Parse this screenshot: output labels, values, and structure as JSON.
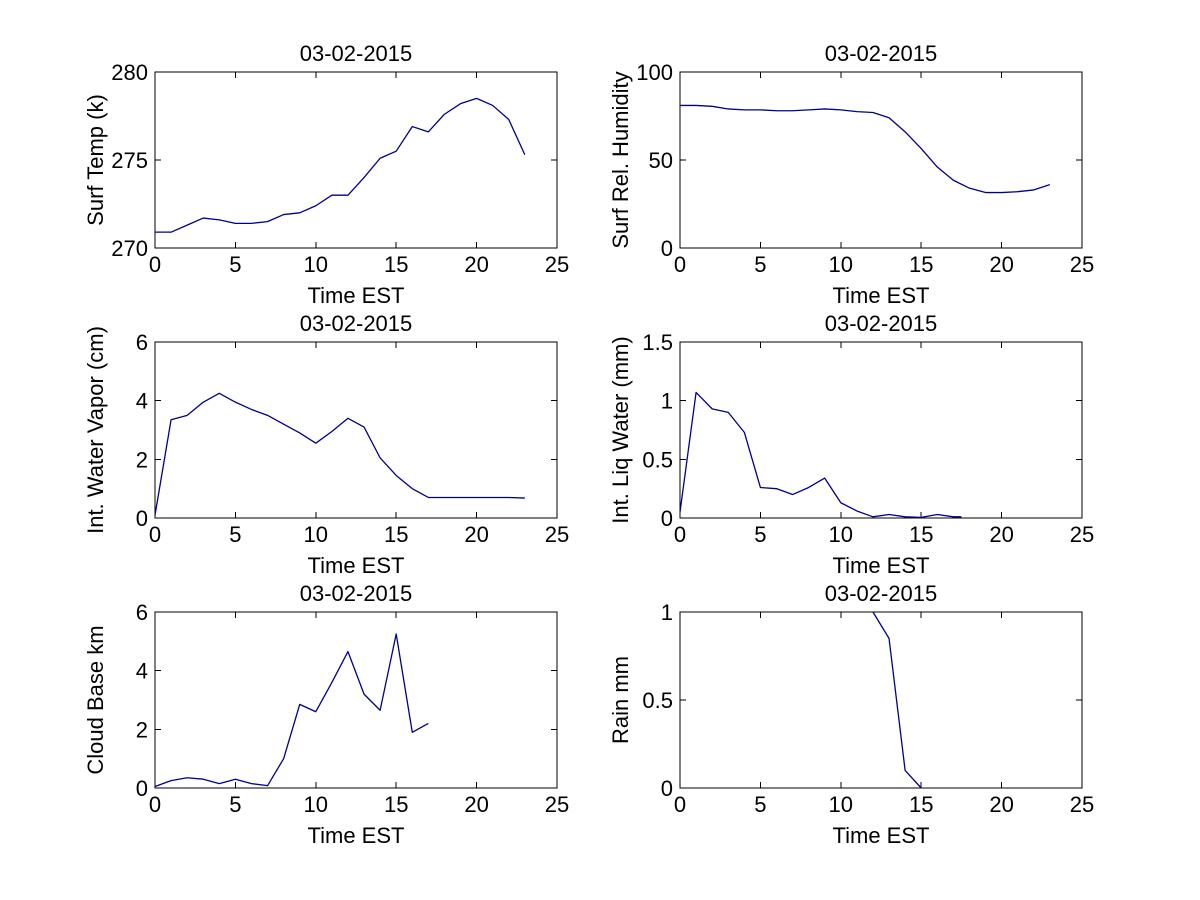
{
  "figure": {
    "background_color": "#ffffff",
    "axis_color": "#000000",
    "line_color": "#00008B",
    "date_title": "03-02-2015",
    "time_axis_label": "Time EST"
  },
  "chart_data": [
    {
      "type": "line",
      "name": "surf-temp",
      "title": "03-02-2015",
      "xlabel": "Time EST",
      "ylabel": "Surf Temp (k)",
      "xlim": [
        0,
        25
      ],
      "ylim": [
        270,
        280
      ],
      "xticks": [
        0,
        5,
        10,
        15,
        20,
        25
      ],
      "yticks": [
        270,
        275,
        280
      ],
      "legend": "none",
      "grid": false,
      "x": [
        0,
        1,
        2,
        3,
        4,
        5,
        6,
        7,
        8,
        9,
        10,
        11,
        12,
        13,
        14,
        15,
        16,
        17,
        18,
        19,
        20,
        21,
        22,
        23
      ],
      "y": [
        270.9,
        270.9,
        271.3,
        271.7,
        271.6,
        271.4,
        271.4,
        271.5,
        271.9,
        272.0,
        272.4,
        273.0,
        273.0,
        274.0,
        275.1,
        275.5,
        276.9,
        276.6,
        277.6,
        278.2,
        278.5,
        278.1,
        277.3,
        275.3
      ]
    },
    {
      "type": "line",
      "name": "surf-rel-humidity",
      "title": "03-02-2015",
      "xlabel": "Time EST",
      "ylabel": "Surf Rel. Humidity",
      "xlim": [
        0,
        25
      ],
      "ylim": [
        0,
        100
      ],
      "xticks": [
        0,
        5,
        10,
        15,
        20,
        25
      ],
      "yticks": [
        0,
        50,
        100
      ],
      "legend": "none",
      "grid": false,
      "x": [
        0,
        1,
        2,
        3,
        4,
        5,
        6,
        7,
        8,
        9,
        10,
        11,
        12,
        13,
        14,
        15,
        16,
        17,
        18,
        19,
        20,
        21,
        22,
        23
      ],
      "y": [
        81,
        81,
        80.5,
        79,
        78.5,
        78.5,
        78,
        78,
        78.5,
        79,
        78.5,
        77.5,
        77,
        74,
        66,
        56.5,
        46,
        38.5,
        34,
        31.5,
        31.5,
        32,
        33,
        36
      ]
    },
    {
      "type": "line",
      "name": "int-water-vapor",
      "title": "03-02-2015",
      "xlabel": "Time EST",
      "ylabel": "Int. Water Vapor (cm)",
      "xlim": [
        0,
        25
      ],
      "ylim": [
        0,
        6
      ],
      "xticks": [
        0,
        5,
        10,
        15,
        20,
        25
      ],
      "yticks": [
        0,
        2,
        4,
        6
      ],
      "legend": "none",
      "grid": false,
      "x": [
        0,
        1,
        2,
        3,
        4,
        5,
        6,
        7,
        8,
        9,
        10,
        11,
        12,
        13,
        14,
        15,
        16,
        17,
        18,
        19,
        20,
        21,
        22,
        23
      ],
      "y": [
        0.1,
        3.35,
        3.5,
        3.95,
        4.25,
        3.95,
        3.7,
        3.5,
        3.2,
        2.9,
        2.55,
        2.95,
        3.4,
        3.1,
        2.05,
        1.45,
        1.0,
        0.7,
        0.7,
        0.7,
        0.7,
        0.7,
        0.7,
        0.68
      ]
    },
    {
      "type": "line",
      "name": "int-liq-water",
      "title": "03-02-2015",
      "xlabel": "Time EST",
      "ylabel": "Int. Liq Water (mm)",
      "xlim": [
        0,
        25
      ],
      "ylim": [
        0,
        1.5
      ],
      "xticks": [
        0,
        5,
        10,
        15,
        20,
        25
      ],
      "yticks": [
        0,
        0.5,
        1,
        1.5
      ],
      "legend": "none",
      "grid": false,
      "x": [
        0,
        1,
        2,
        3,
        4,
        5,
        6,
        7,
        8,
        9,
        10,
        11,
        12,
        13,
        14,
        15,
        16,
        17,
        17.5
      ],
      "y": [
        0.05,
        1.07,
        0.93,
        0.9,
        0.73,
        0.26,
        0.25,
        0.2,
        0.26,
        0.34,
        0.13,
        0.06,
        0.01,
        0.03,
        0.01,
        0.005,
        0.03,
        0.01,
        0.01
      ]
    },
    {
      "type": "line",
      "name": "cloud-base",
      "title": "03-02-2015",
      "xlabel": "Time EST",
      "ylabel": "Cloud Base km",
      "xlim": [
        0,
        25
      ],
      "ylim": [
        0,
        6
      ],
      "xticks": [
        0,
        5,
        10,
        15,
        20,
        25
      ],
      "yticks": [
        0,
        2,
        4,
        6
      ],
      "legend": "none",
      "grid": false,
      "x": [
        0,
        1,
        2,
        3,
        4,
        5,
        6,
        7,
        8,
        9,
        10,
        11,
        12,
        13,
        14,
        15,
        16,
        17
      ],
      "y": [
        0.05,
        0.25,
        0.35,
        0.3,
        0.15,
        0.3,
        0.15,
        0.08,
        1.0,
        2.85,
        2.6,
        3.6,
        4.65,
        3.2,
        2.65,
        5.25,
        1.9,
        2.2
      ]
    },
    {
      "type": "line",
      "name": "rain",
      "title": "03-02-2015",
      "xlabel": "Time EST",
      "ylabel": "Rain mm",
      "xlim": [
        0,
        25
      ],
      "ylim": [
        0,
        1
      ],
      "xticks": [
        0,
        5,
        10,
        15,
        20,
        25
      ],
      "yticks": [
        0,
        0.5,
        1
      ],
      "legend": "none",
      "grid": false,
      "x": [
        12,
        13,
        14,
        15
      ],
      "y": [
        1.0,
        0.85,
        0.1,
        0.0
      ]
    }
  ]
}
